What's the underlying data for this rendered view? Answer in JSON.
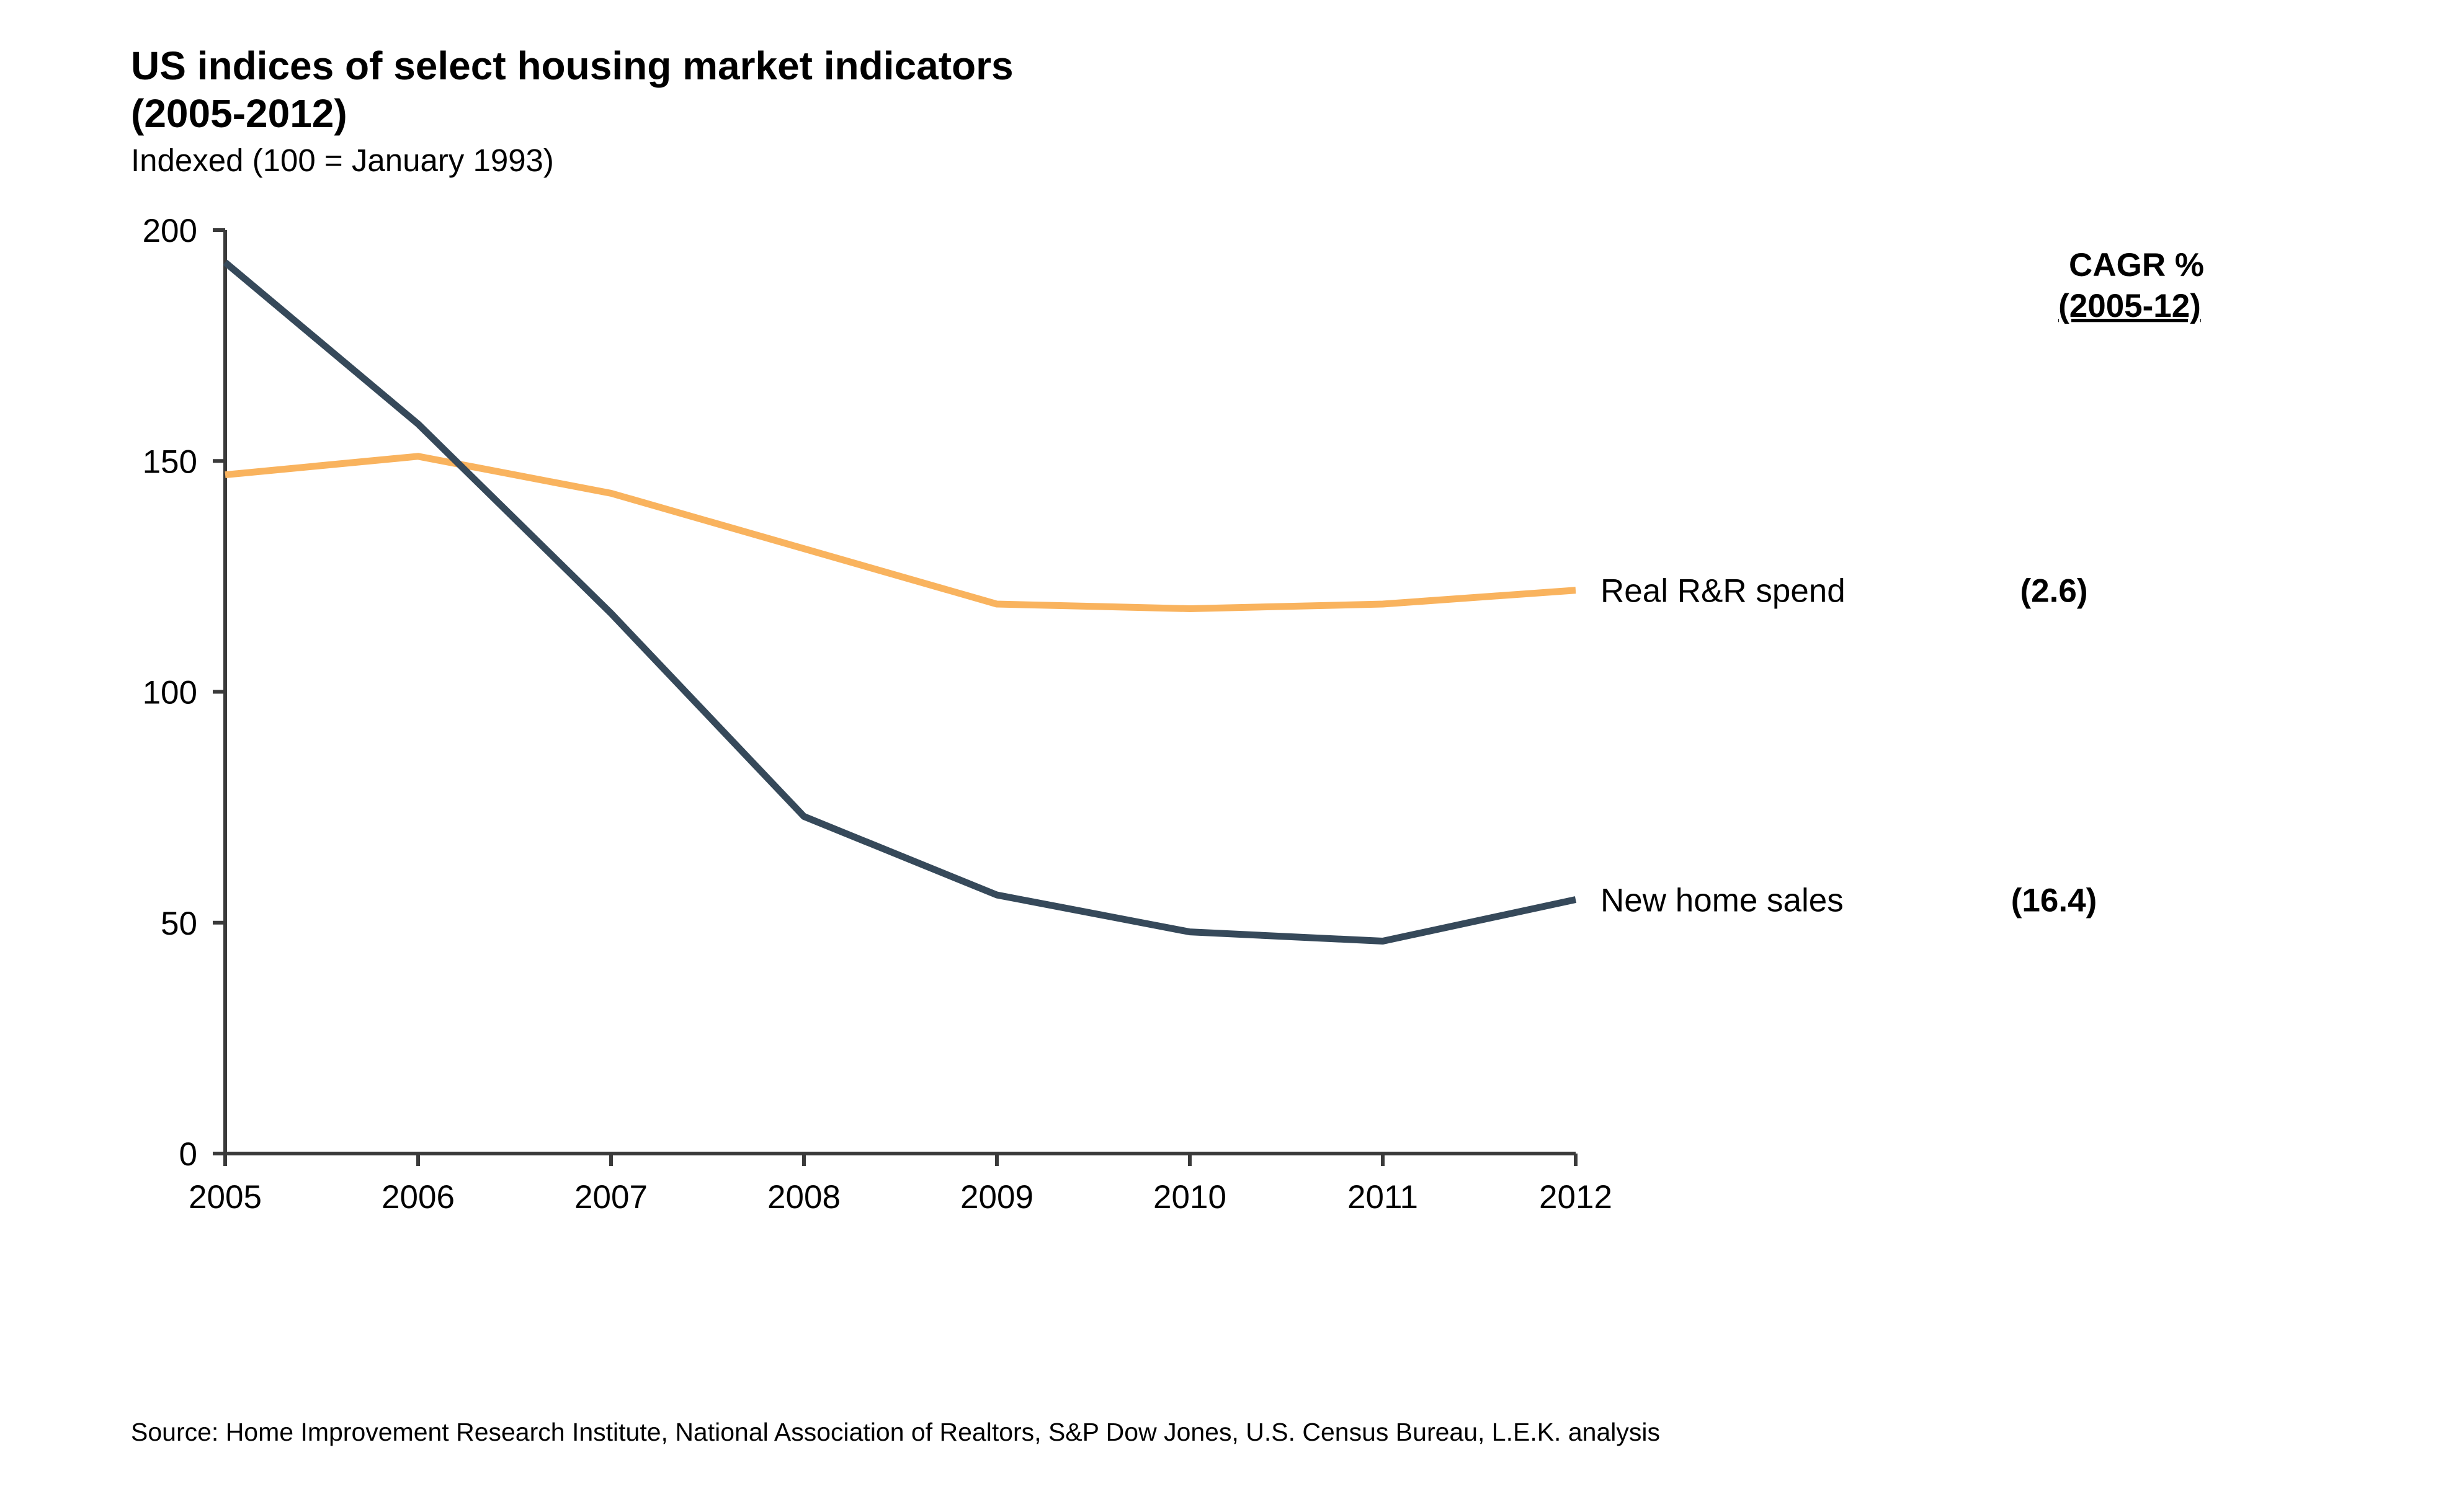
{
  "chart_data": {
    "type": "line",
    "title": "US indices of select housing market indicators",
    "title_line2": "(2005-2012)",
    "subtitle": "Indexed (100 = January 1993)",
    "xlabel": "",
    "ylabel": "",
    "x": [
      "2005",
      "2006",
      "2007",
      "2008",
      "2009",
      "2010",
      "2011",
      "2012"
    ],
    "ylim": [
      0,
      200
    ],
    "yticks": [
      "0",
      "50",
      "100",
      "150",
      "200"
    ],
    "grid": false,
    "legend": "inline labels at right end of lines",
    "series": [
      {
        "name": "Real R&R spend",
        "values": [
          147,
          151,
          143,
          131,
          119,
          118,
          119,
          122
        ],
        "color": "#F9B35E",
        "cagr": "(2.6)"
      },
      {
        "name": "New home sales",
        "values": [
          193,
          158,
          117,
          73,
          56,
          48,
          46,
          55
        ],
        "color": "#36495A",
        "cagr": "(16.4)"
      }
    ],
    "cagr_header_line1": "CAGR %",
    "cagr_header_line2": "(2005-12)",
    "axis_color": "#3a3a3a"
  },
  "source": "Source: Home Improvement Research Institute, National Association of Realtors, S&P Dow Jones, U.S. Census Bureau, L.E.K. analysis"
}
